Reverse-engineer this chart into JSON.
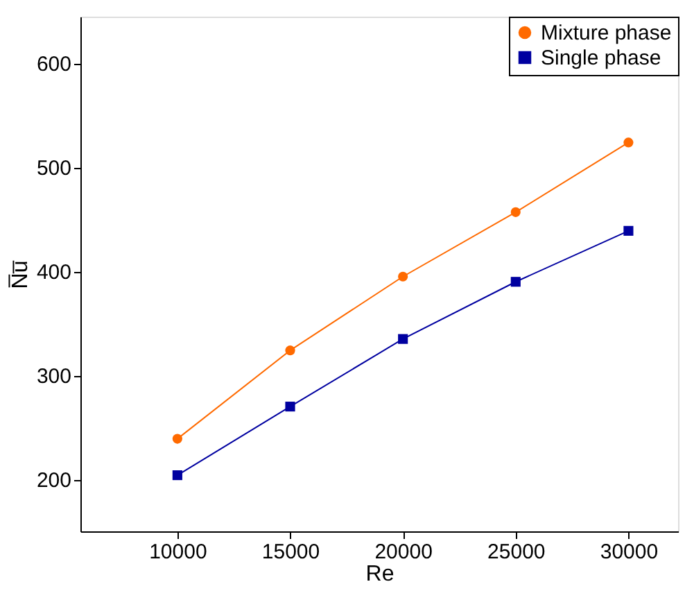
{
  "chart_data": {
    "type": "line",
    "xlabel": "Re",
    "ylabel": "N̅u̅",
    "x": [
      10000,
      15000,
      20000,
      25000,
      30000
    ],
    "series": [
      {
        "name": "Mixture phase",
        "color": "#ff6a00",
        "marker": "circle",
        "values": [
          239,
          324,
          395,
          457,
          524
        ]
      },
      {
        "name": "Single phase",
        "color": "#0000a0",
        "marker": "square",
        "values": [
          204,
          270,
          335,
          390,
          439
        ]
      }
    ],
    "xlim": [
      5700,
      32200
    ],
    "xticks": [
      10000,
      15000,
      20000,
      25000,
      30000
    ],
    "ylim": [
      150,
      645
    ],
    "yticks": [
      200,
      300,
      400,
      500,
      600
    ],
    "grid": false,
    "legend": "top right",
    "line_style": "solid"
  }
}
